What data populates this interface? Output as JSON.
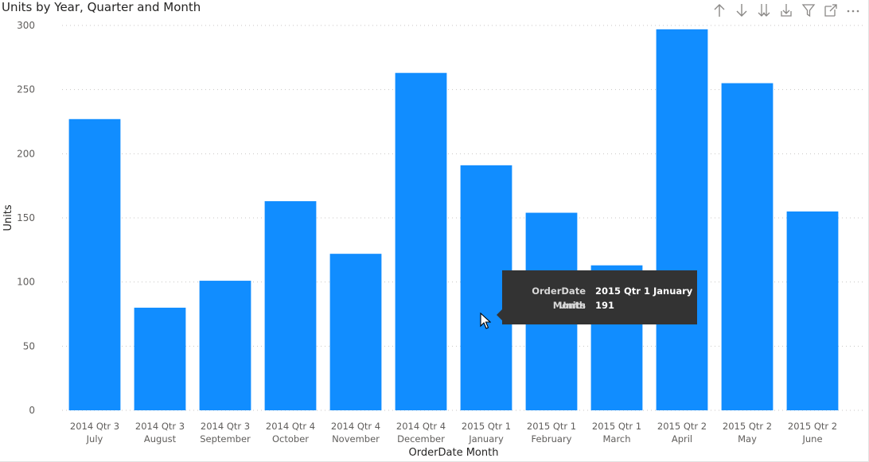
{
  "visual": {
    "title": "Units by Year, Quarter and Month",
    "toolbar": [
      {
        "name": "drill-up-icon"
      },
      {
        "name": "drill-down-icon"
      },
      {
        "name": "go-to-next-level-icon"
      },
      {
        "name": "expand-hierarchy-icon"
      },
      {
        "name": "filter-icon"
      },
      {
        "name": "focus-mode-icon"
      },
      {
        "name": "more-options-icon"
      }
    ]
  },
  "chart_data": {
    "type": "bar",
    "title": "Units by Year, Quarter and Month",
    "xlabel": "OrderDate Month",
    "ylabel": "Units",
    "ylim": [
      0,
      300
    ],
    "yticks": [
      0,
      50,
      100,
      150,
      200,
      250,
      300
    ],
    "grid": true,
    "bar_color": "#118DFF",
    "categories": [
      {
        "line1": "2014 Qtr 3",
        "line2": "July"
      },
      {
        "line1": "2014 Qtr 3",
        "line2": "August"
      },
      {
        "line1": "2014 Qtr 3",
        "line2": "September"
      },
      {
        "line1": "2014 Qtr 4",
        "line2": "October"
      },
      {
        "line1": "2014 Qtr 4",
        "line2": "November"
      },
      {
        "line1": "2014 Qtr 4",
        "line2": "December"
      },
      {
        "line1": "2015 Qtr 1",
        "line2": "January"
      },
      {
        "line1": "2015 Qtr 1",
        "line2": "February"
      },
      {
        "line1": "2015 Qtr 1",
        "line2": "March"
      },
      {
        "line1": "2015 Qtr 2",
        "line2": "April"
      },
      {
        "line1": "2015 Qtr 2",
        "line2": "May"
      },
      {
        "line1": "2015 Qtr 2",
        "line2": "June"
      }
    ],
    "values": [
      227,
      80,
      101,
      163,
      122,
      263,
      191,
      154,
      113,
      297,
      255,
      155
    ]
  },
  "tooltip": {
    "rows": [
      {
        "key": "OrderDate Month",
        "value": "2015 Qtr 1 January"
      },
      {
        "key": "Units",
        "value": "191"
      }
    ]
  }
}
